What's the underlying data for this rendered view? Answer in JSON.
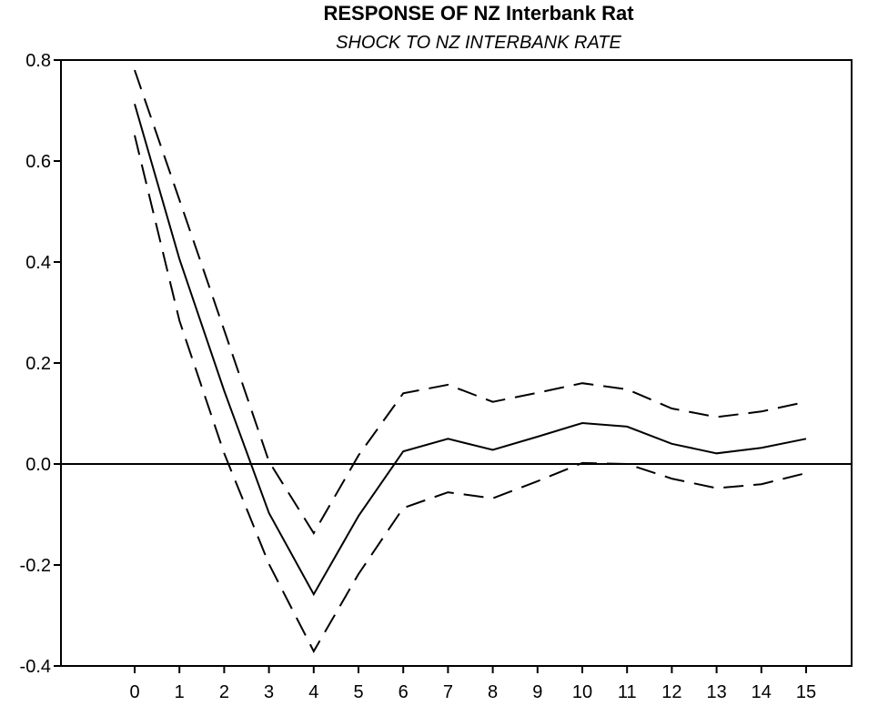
{
  "chart_data": {
    "type": "line",
    "title": "RESPONSE OF NZ Interbank Rat",
    "subtitle": "SHOCK TO NZ INTERBANK RATE",
    "x": [
      0,
      1,
      2,
      3,
      4,
      5,
      6,
      7,
      8,
      9,
      10,
      11,
      12,
      13,
      14,
      15
    ],
    "xticks": [
      "0",
      "1",
      "2",
      "3",
      "4",
      "5",
      "6",
      "7",
      "8",
      "9",
      "10",
      "11",
      "12",
      "13",
      "14",
      "15"
    ],
    "ylim": [
      -0.4,
      0.8
    ],
    "yticks": [
      "0.8",
      "0.6",
      "0.4",
      "0.2",
      "0.0",
      "-0.2",
      "-0.4"
    ],
    "ytick_values": [
      0.8,
      0.6,
      0.4,
      0.2,
      0.0,
      -0.2,
      -0.4
    ],
    "zero_line": true,
    "grid": false,
    "series": [
      {
        "style": "solid",
        "values": [
          0.713,
          0.406,
          0.145,
          -0.097,
          -0.258,
          -0.103,
          0.025,
          0.05,
          0.028,
          0.054,
          0.081,
          0.074,
          0.04,
          0.021,
          0.032,
          0.05
        ]
      },
      {
        "style": "dashed",
        "values": [
          0.78,
          0.523,
          0.265,
          0.005,
          -0.137,
          0.017,
          0.14,
          0.157,
          0.123,
          0.141,
          0.16,
          0.148,
          0.11,
          0.093,
          0.104,
          0.123
        ]
      },
      {
        "style": "dashed",
        "values": [
          0.651,
          0.284,
          0.021,
          -0.198,
          -0.371,
          -0.218,
          -0.087,
          -0.056,
          -0.068,
          -0.034,
          0.002,
          0.0,
          -0.029,
          -0.048,
          -0.04,
          -0.018
        ]
      }
    ]
  }
}
